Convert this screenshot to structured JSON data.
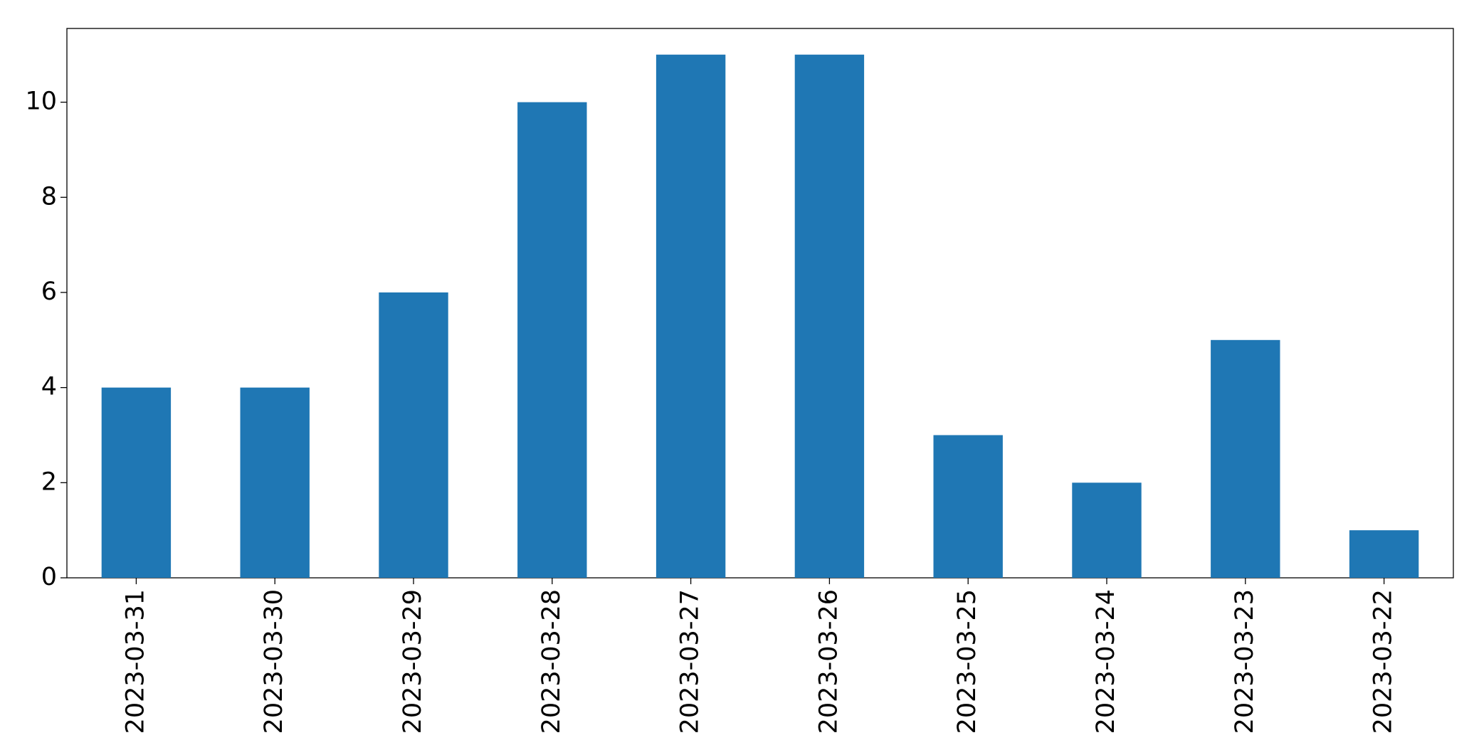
{
  "chart_data": {
    "type": "bar",
    "categories": [
      "2023-03-31",
      "2023-03-30",
      "2023-03-29",
      "2023-03-28",
      "2023-03-27",
      "2023-03-26",
      "2023-03-25",
      "2023-03-24",
      "2023-03-23",
      "2023-03-22"
    ],
    "values": [
      4,
      4,
      6,
      10,
      11,
      11,
      3,
      2,
      5,
      1
    ],
    "color": "#1f77b4",
    "ylim": [
      0,
      11.55
    ],
    "yticks": [
      0,
      2,
      4,
      6,
      8,
      10
    ],
    "grid": false
  }
}
